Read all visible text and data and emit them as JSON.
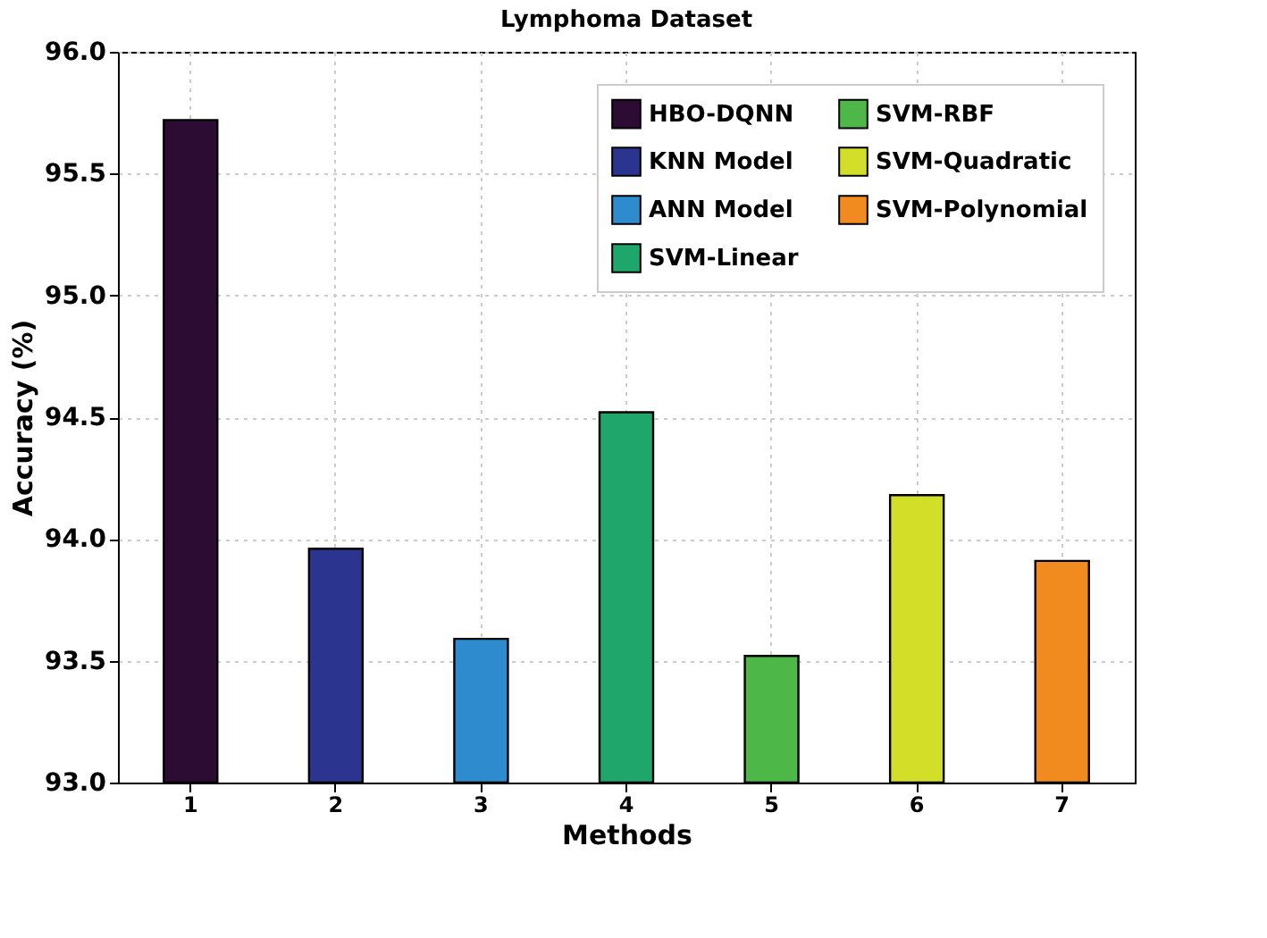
{
  "chart_data": {
    "type": "bar",
    "title": "Lymphoma Dataset",
    "xlabel": "Methods",
    "ylabel": "Accuracy (%)",
    "categories": [
      "1",
      "2",
      "3",
      "4",
      "5",
      "6",
      "7"
    ],
    "series": [
      {
        "name": "HBO-DQNN",
        "color": "#2d0c34",
        "values": [
          95.72,
          null,
          null,
          null,
          null,
          null,
          null
        ]
      },
      {
        "name": "KNN Model",
        "color": "#2b3590",
        "values": [
          null,
          93.96,
          null,
          null,
          null,
          null,
          null
        ]
      },
      {
        "name": "ANN Model",
        "color": "#2e8bcd",
        "values": [
          null,
          null,
          93.59,
          null,
          null,
          null,
          null
        ]
      },
      {
        "name": "SVM-Linear",
        "color": "#1fa66a",
        "values": [
          null,
          null,
          null,
          94.52,
          null,
          null,
          null
        ]
      },
      {
        "name": "SVM-RBF",
        "color": "#4db848",
        "values": [
          null,
          null,
          null,
          null,
          93.52,
          null,
          null
        ]
      },
      {
        "name": "SVM-Quadratic",
        "color": "#d2de27",
        "values": [
          null,
          null,
          null,
          null,
          null,
          94.18,
          null
        ]
      },
      {
        "name": "SVM-Polynomial",
        "color": "#f28b1f",
        "values": [
          null,
          null,
          null,
          null,
          null,
          null,
          93.91
        ]
      }
    ],
    "ylim": [
      93.0,
      96.0
    ],
    "yticks": [
      {
        "value": 93.0,
        "label": "93.0"
      },
      {
        "value": 93.5,
        "label": "93.5"
      },
      {
        "value": 94.0,
        "label": "94.0"
      },
      {
        "value": 94.5,
        "label": "94.5"
      },
      {
        "value": 95.0,
        "label": "95.0"
      },
      {
        "value": 95.5,
        "label": "95.5"
      },
      {
        "value": 96.0,
        "label": "96.0"
      }
    ],
    "grid": true,
    "legend": "top right"
  }
}
